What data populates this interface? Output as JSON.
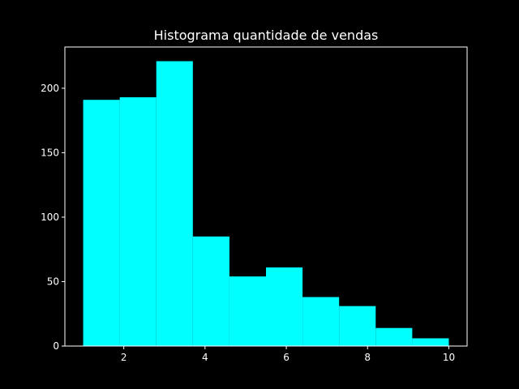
{
  "chart_data": {
    "type": "bar",
    "title": "Histograma quantidade de vendas",
    "xlabel": "",
    "ylabel": "",
    "bins": [
      {
        "x0": 1.0,
        "x1": 1.9,
        "value": 191
      },
      {
        "x0": 1.9,
        "x1": 2.8,
        "value": 193
      },
      {
        "x0": 2.8,
        "x1": 3.7,
        "value": 221
      },
      {
        "x0": 3.7,
        "x1": 4.6,
        "value": 85
      },
      {
        "x0": 4.6,
        "x1": 5.5,
        "value": 54
      },
      {
        "x0": 5.5,
        "x1": 6.4,
        "value": 61
      },
      {
        "x0": 6.4,
        "x1": 7.3,
        "value": 38
      },
      {
        "x0": 7.3,
        "x1": 8.2,
        "value": 31
      },
      {
        "x0": 8.2,
        "x1": 9.1,
        "value": 14
      },
      {
        "x0": 9.1,
        "x1": 10.0,
        "value": 6
      }
    ],
    "xlim": [
      0.55,
      10.45
    ],
    "ylim": [
      0,
      232
    ],
    "xticks": [
      2,
      4,
      6,
      8,
      10
    ],
    "yticks": [
      0,
      50,
      100,
      150,
      200
    ],
    "grid": false,
    "legend": false
  },
  "colors": {
    "background": "#000000",
    "bar": "#00ffff",
    "axis": "#ffffff",
    "text": "#ffffff"
  }
}
